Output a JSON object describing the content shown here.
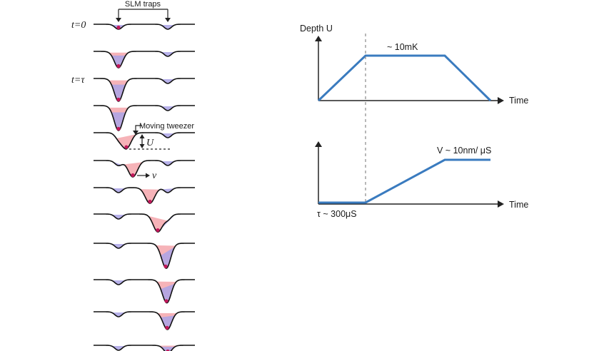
{
  "left_panel": {
    "slm_traps_label": "SLM traps",
    "t0_label": "t=0",
    "ttau_label": "t=τ",
    "moving_tweezer_label": "Moving tweezer",
    "depth_symbol": "U",
    "velocity_symbol": "v"
  },
  "depth_plot": {
    "ylabel": "Depth U",
    "xlabel": "Time",
    "annotation": "~ 10mK"
  },
  "velocity_plot": {
    "xlabel": "Time",
    "annotation": "V ~ 10nm/ μS",
    "tau_label": "τ ~ 300μS"
  },
  "colors": {
    "line": "#3a7bbf",
    "dashed": "#888888",
    "slm_fill": "#aaa3e6",
    "tweezer_fill": "#f6b3b8",
    "atom": "#c2185b",
    "axis": "#222222"
  }
}
